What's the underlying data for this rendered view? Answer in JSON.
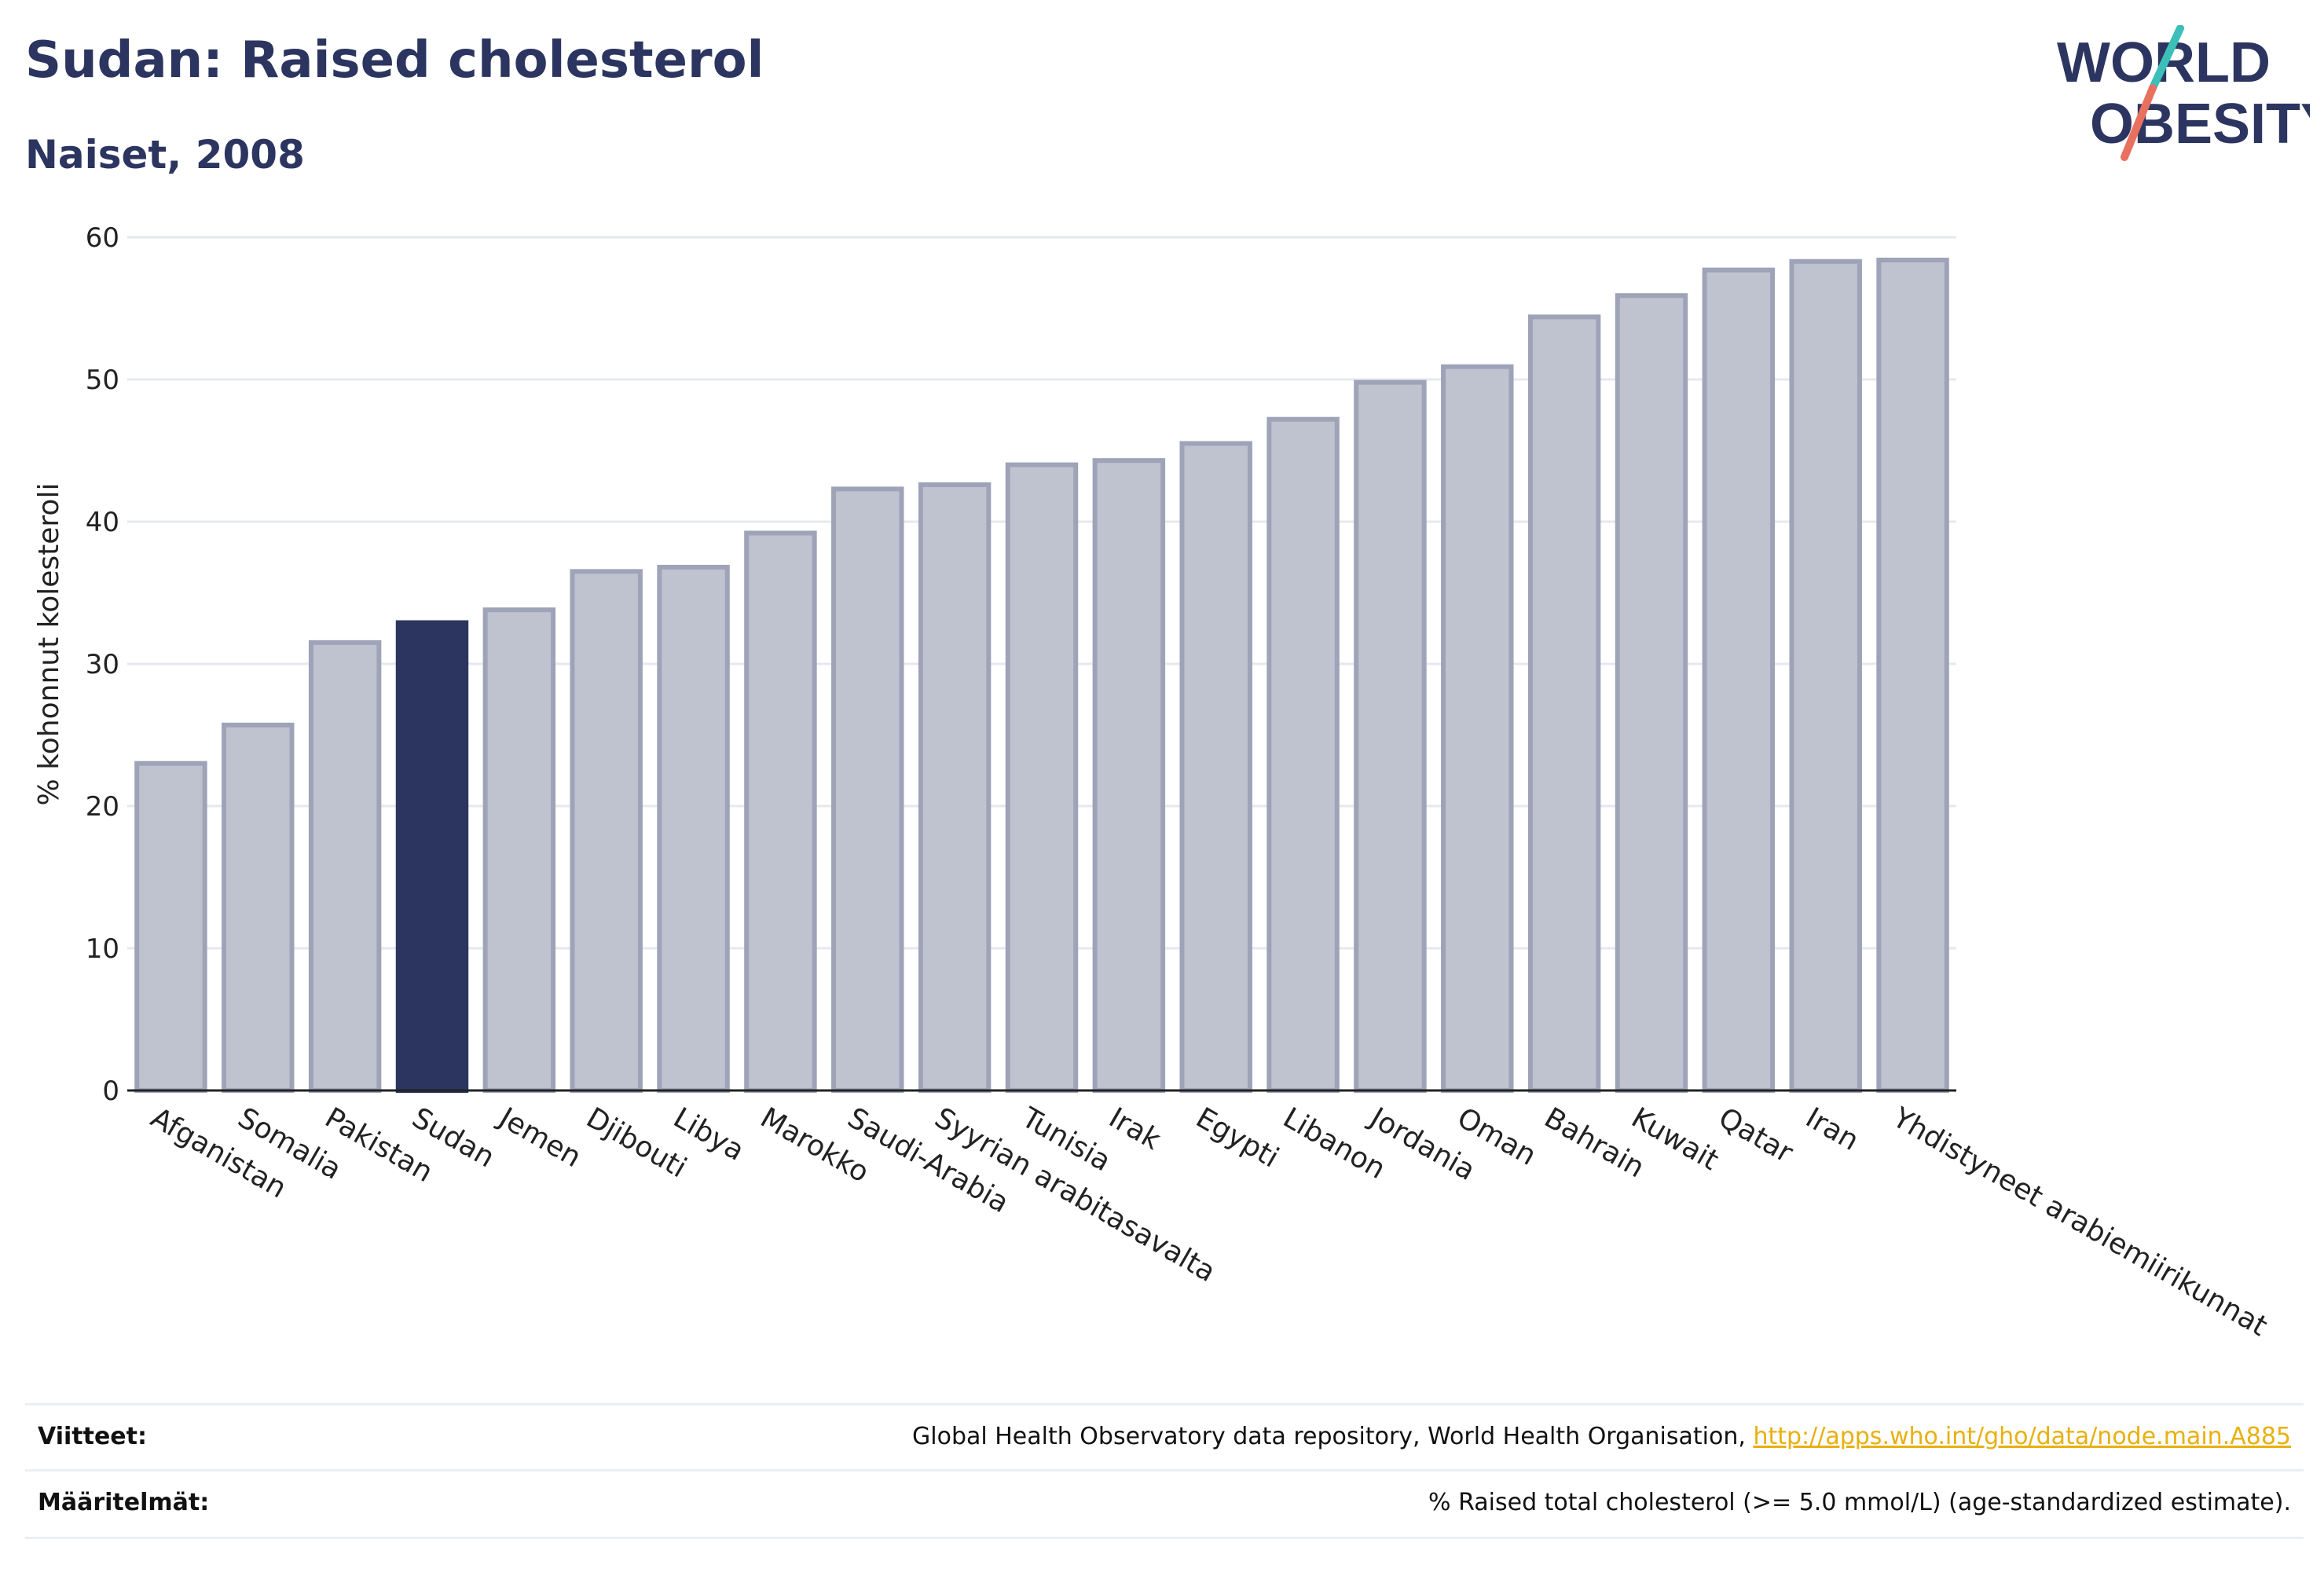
{
  "header": {
    "title": "Sudan: Raised cholesterol",
    "subtitle": "Naiset, 2008"
  },
  "logo": {
    "line1": "WORLD",
    "line2": "OBESITY",
    "colors": {
      "text": "#2c3560",
      "slash_top": "#3bbfb8",
      "slash_bottom": "#e8705f"
    }
  },
  "colors": {
    "bar": "#bfc2cf",
    "bar_border": "#9ea3b8",
    "highlight": "#2c3560",
    "grid": "#e6e8ef"
  },
  "chart_data": {
    "type": "bar",
    "categories": [
      "Afganistan",
      "Somalia",
      "Pakistan",
      "Sudan",
      "Jemen",
      "Djibouti",
      "Libya",
      "Marokko",
      "Saudi-Arabia",
      "Syyrian arabitasavalta",
      "Tunisia",
      "Irak",
      "Egypti",
      "Libanon",
      "Jordania",
      "Oman",
      "Bahrain",
      "Kuwait",
      "Qatar",
      "Iran",
      "Yhdistyneet arabiemiirikunnat"
    ],
    "values": [
      23.0,
      25.7,
      31.5,
      32.9,
      33.8,
      36.5,
      36.8,
      39.2,
      42.3,
      42.6,
      44.0,
      44.3,
      45.5,
      47.2,
      49.8,
      50.9,
      54.4,
      55.9,
      57.7,
      58.3,
      58.4
    ],
    "highlight": "Sudan",
    "ylabel": "% kohonnut kolesteroli",
    "xlabel": "",
    "ylim": [
      0,
      60
    ],
    "yticks": [
      0,
      10,
      20,
      30,
      40,
      50,
      60
    ],
    "grid": true
  },
  "footer": {
    "sources_label": "Viitteet:",
    "sources_text": "Global Health Observatory data repository, World Health Organisation, ",
    "sources_link": "http://apps.who.int/gho/data/node.main.A885",
    "definitions_label": "Määritelmät:",
    "definitions_text": "% Raised total cholesterol (>= 5.0 mmol/L) (age-standardized estimate)."
  }
}
